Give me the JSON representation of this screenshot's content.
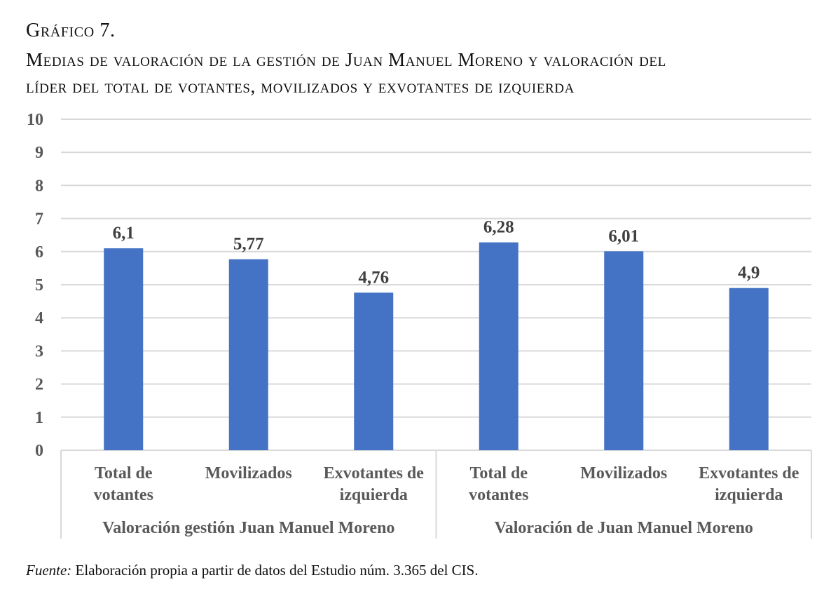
{
  "figure_label": "Gráfico 7.",
  "title_line1": "Medias de valoración de la gestión de Juan Manuel Moreno y valoración del",
  "title_line2": "líder del total de votantes, movilizados y exvotantes de izquierda",
  "source_label": "Fuente:",
  "source_text": " Elaboración propia a partir de datos del Estudio núm. 3.365 del CIS.",
  "chart_data": {
    "type": "bar",
    "title": "Medias de valoración de la gestión de Juan Manuel Moreno y valoración del líder del total de votantes, movilizados y exvotantes de izquierda",
    "xlabel": "",
    "ylabel": "",
    "ylim": [
      0,
      10
    ],
    "yticks": [
      "0",
      "1",
      "2",
      "3",
      "4",
      "5",
      "6",
      "7",
      "8",
      "9",
      "10"
    ],
    "grid": true,
    "bar_color": "#4472C4",
    "groups": [
      {
        "name": "Valoración gestión Juan Manuel Moreno",
        "categories": [
          [
            "Total de",
            "votantes"
          ],
          [
            "Movilizados"
          ],
          [
            "Exvotantes de",
            "izquierda"
          ]
        ],
        "values": [
          6.1,
          5.77,
          4.76
        ],
        "labels": [
          "6,1",
          "5,77",
          "4,76"
        ]
      },
      {
        "name": "Valoración de Juan Manuel Moreno",
        "categories": [
          [
            "Total de",
            "votantes"
          ],
          [
            "Movilizados"
          ],
          [
            "Exvotantes de",
            "izquierda"
          ]
        ],
        "values": [
          6.28,
          6.01,
          4.9
        ],
        "labels": [
          "6,28",
          "6,01",
          "4,9"
        ]
      }
    ]
  }
}
